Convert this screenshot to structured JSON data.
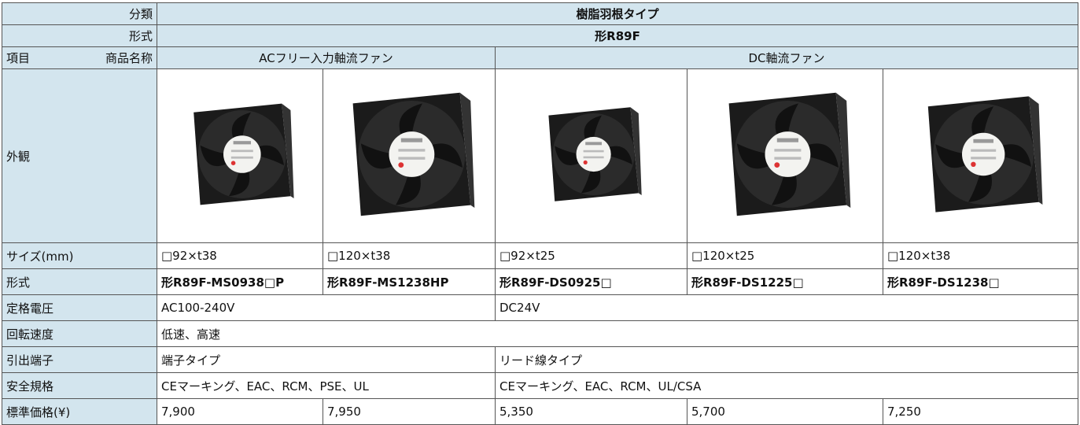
{
  "header": {
    "category_label": "分類",
    "category": "樹脂羽根タイプ",
    "model_label": "形式",
    "model": "形R89F",
    "item_label": "項目",
    "product_name_label": "商品名称",
    "groups": [
      "ACフリー入力軸流ファン",
      "DC軸流ファン"
    ]
  },
  "appearance_label": "外観",
  "rows": [
    {
      "label": "サイズ(mm)",
      "cells": [
        "□92×t38",
        "□120×t38",
        "□92×t25",
        "□120×t25",
        "□120×t38"
      ]
    },
    {
      "label": "形式",
      "cells": [
        "形R89F-MS0938□P",
        "形R89F-MS1238HP",
        "形R89F-DS0925□",
        "形R89F-DS1225□",
        "形R89F-DS1238□"
      ]
    },
    {
      "label": "定格電圧",
      "cells": [
        "AC100-240V",
        "DC24V"
      ]
    },
    {
      "label": "回転速度",
      "cells": [
        "低速、高速"
      ]
    },
    {
      "label": "引出端子",
      "cells": [
        "端子タイプ",
        "リード線タイプ"
      ]
    },
    {
      "label": "安全規格",
      "cells": [
        "CEマーキング、EAC、RCM、PSE、UL",
        "CEマーキング、EAC、RCM、UL/CSA"
      ]
    },
    {
      "label": "標準価格(¥)",
      "cells": [
        "7,900",
        "7,950",
        "5,350",
        "5,700",
        "7,250"
      ]
    }
  ]
}
